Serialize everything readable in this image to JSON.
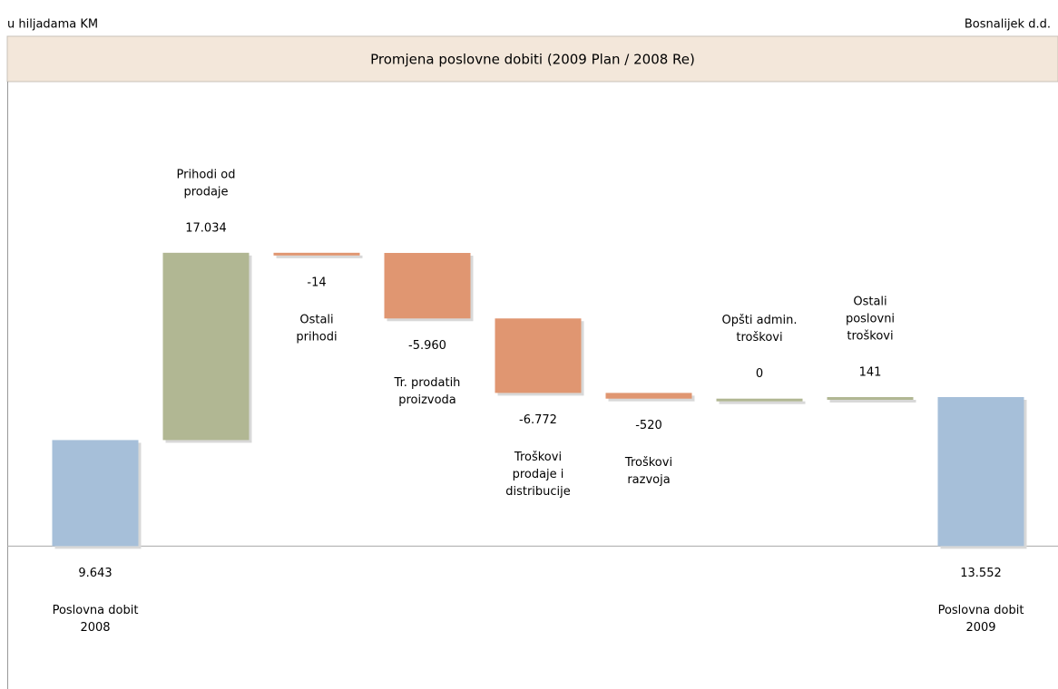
{
  "header": {
    "unit": "u hiljadama KM",
    "company": "Bosnalijek d.d."
  },
  "chart_data": {
    "type": "waterfall",
    "title": "Promjena poslovne dobiti (2009 Plan / 2008 Re)",
    "categories": [
      [
        "Poslovna dobit",
        "2008"
      ],
      [
        "Prihodi od",
        "prodaje"
      ],
      [
        "Ostali",
        "prihodi"
      ],
      [
        "Tr. prodatih",
        "proizvoda"
      ],
      [
        "Troškovi",
        "prodaje i",
        "distribucije"
      ],
      [
        "Troškovi",
        "razvoja"
      ],
      [
        "Opšti admin.",
        "troškovi"
      ],
      [
        "Ostali",
        "poslovni",
        "troškovi"
      ],
      [
        "Poslovna dobit",
        "2009"
      ]
    ],
    "values": [
      9643,
      17034,
      -14,
      -5960,
      -6772,
      -520,
      0,
      141,
      13552
    ],
    "value_labels": [
      "9.643",
      "17.034",
      "-14",
      "-5.960",
      "-6.772",
      "-520",
      "0",
      "141",
      "13.552"
    ],
    "totals": [
      0,
      8
    ],
    "colors": {
      "total": "#a6bfd9",
      "increase": "#b1b793",
      "decrease": "#e09671"
    },
    "ylim": [
      -13000,
      42000
    ]
  }
}
